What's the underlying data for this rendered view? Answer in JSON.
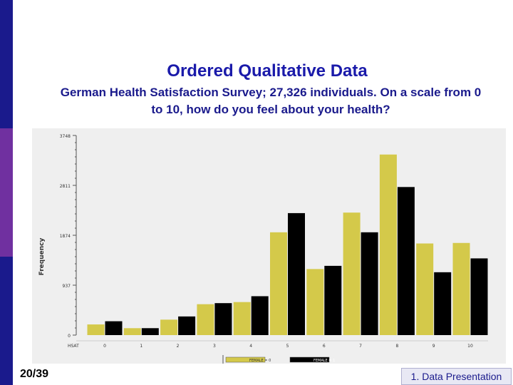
{
  "slide": {
    "title": "Ordered Qualitative Data",
    "subtitle": "German Health Satisfaction Survey; 27,326 individuals. On a scale from 0 to 10, how do you feel about your health?",
    "number": "20/39",
    "section": "1. Data Presentation",
    "colors": {
      "sidebar": "#1a1a8c",
      "sidebar_accent": "#7030a0",
      "title": "#1a1aaa"
    }
  },
  "chart_data": {
    "type": "bar",
    "ylabel": "Frequency",
    "xlabel": "HSAT",
    "categories": [
      "0",
      "1",
      "2",
      "3",
      "4",
      "5",
      "6",
      "7",
      "8",
      "9",
      "10"
    ],
    "yticks": [
      0,
      937,
      1874,
      2811,
      3748
    ],
    "ytick_labels": [
      "0",
      "937",
      "1874",
      "2811",
      "3748"
    ],
    "ylim": [
      0,
      3748
    ],
    "series": [
      {
        "name": "FEMALE = 0",
        "color": "#d4c94a",
        "values": [
          200,
          130,
          290,
          580,
          620,
          1930,
          1240,
          2300,
          3390,
          1720,
          1730
        ]
      },
      {
        "name": "FEMALE = 1",
        "color": "#000000",
        "values": [
          260,
          130,
          350,
          600,
          730,
          2290,
          1300,
          1930,
          2780,
          1180,
          1440
        ]
      }
    ],
    "grid": false,
    "legend_position": "bottom"
  }
}
